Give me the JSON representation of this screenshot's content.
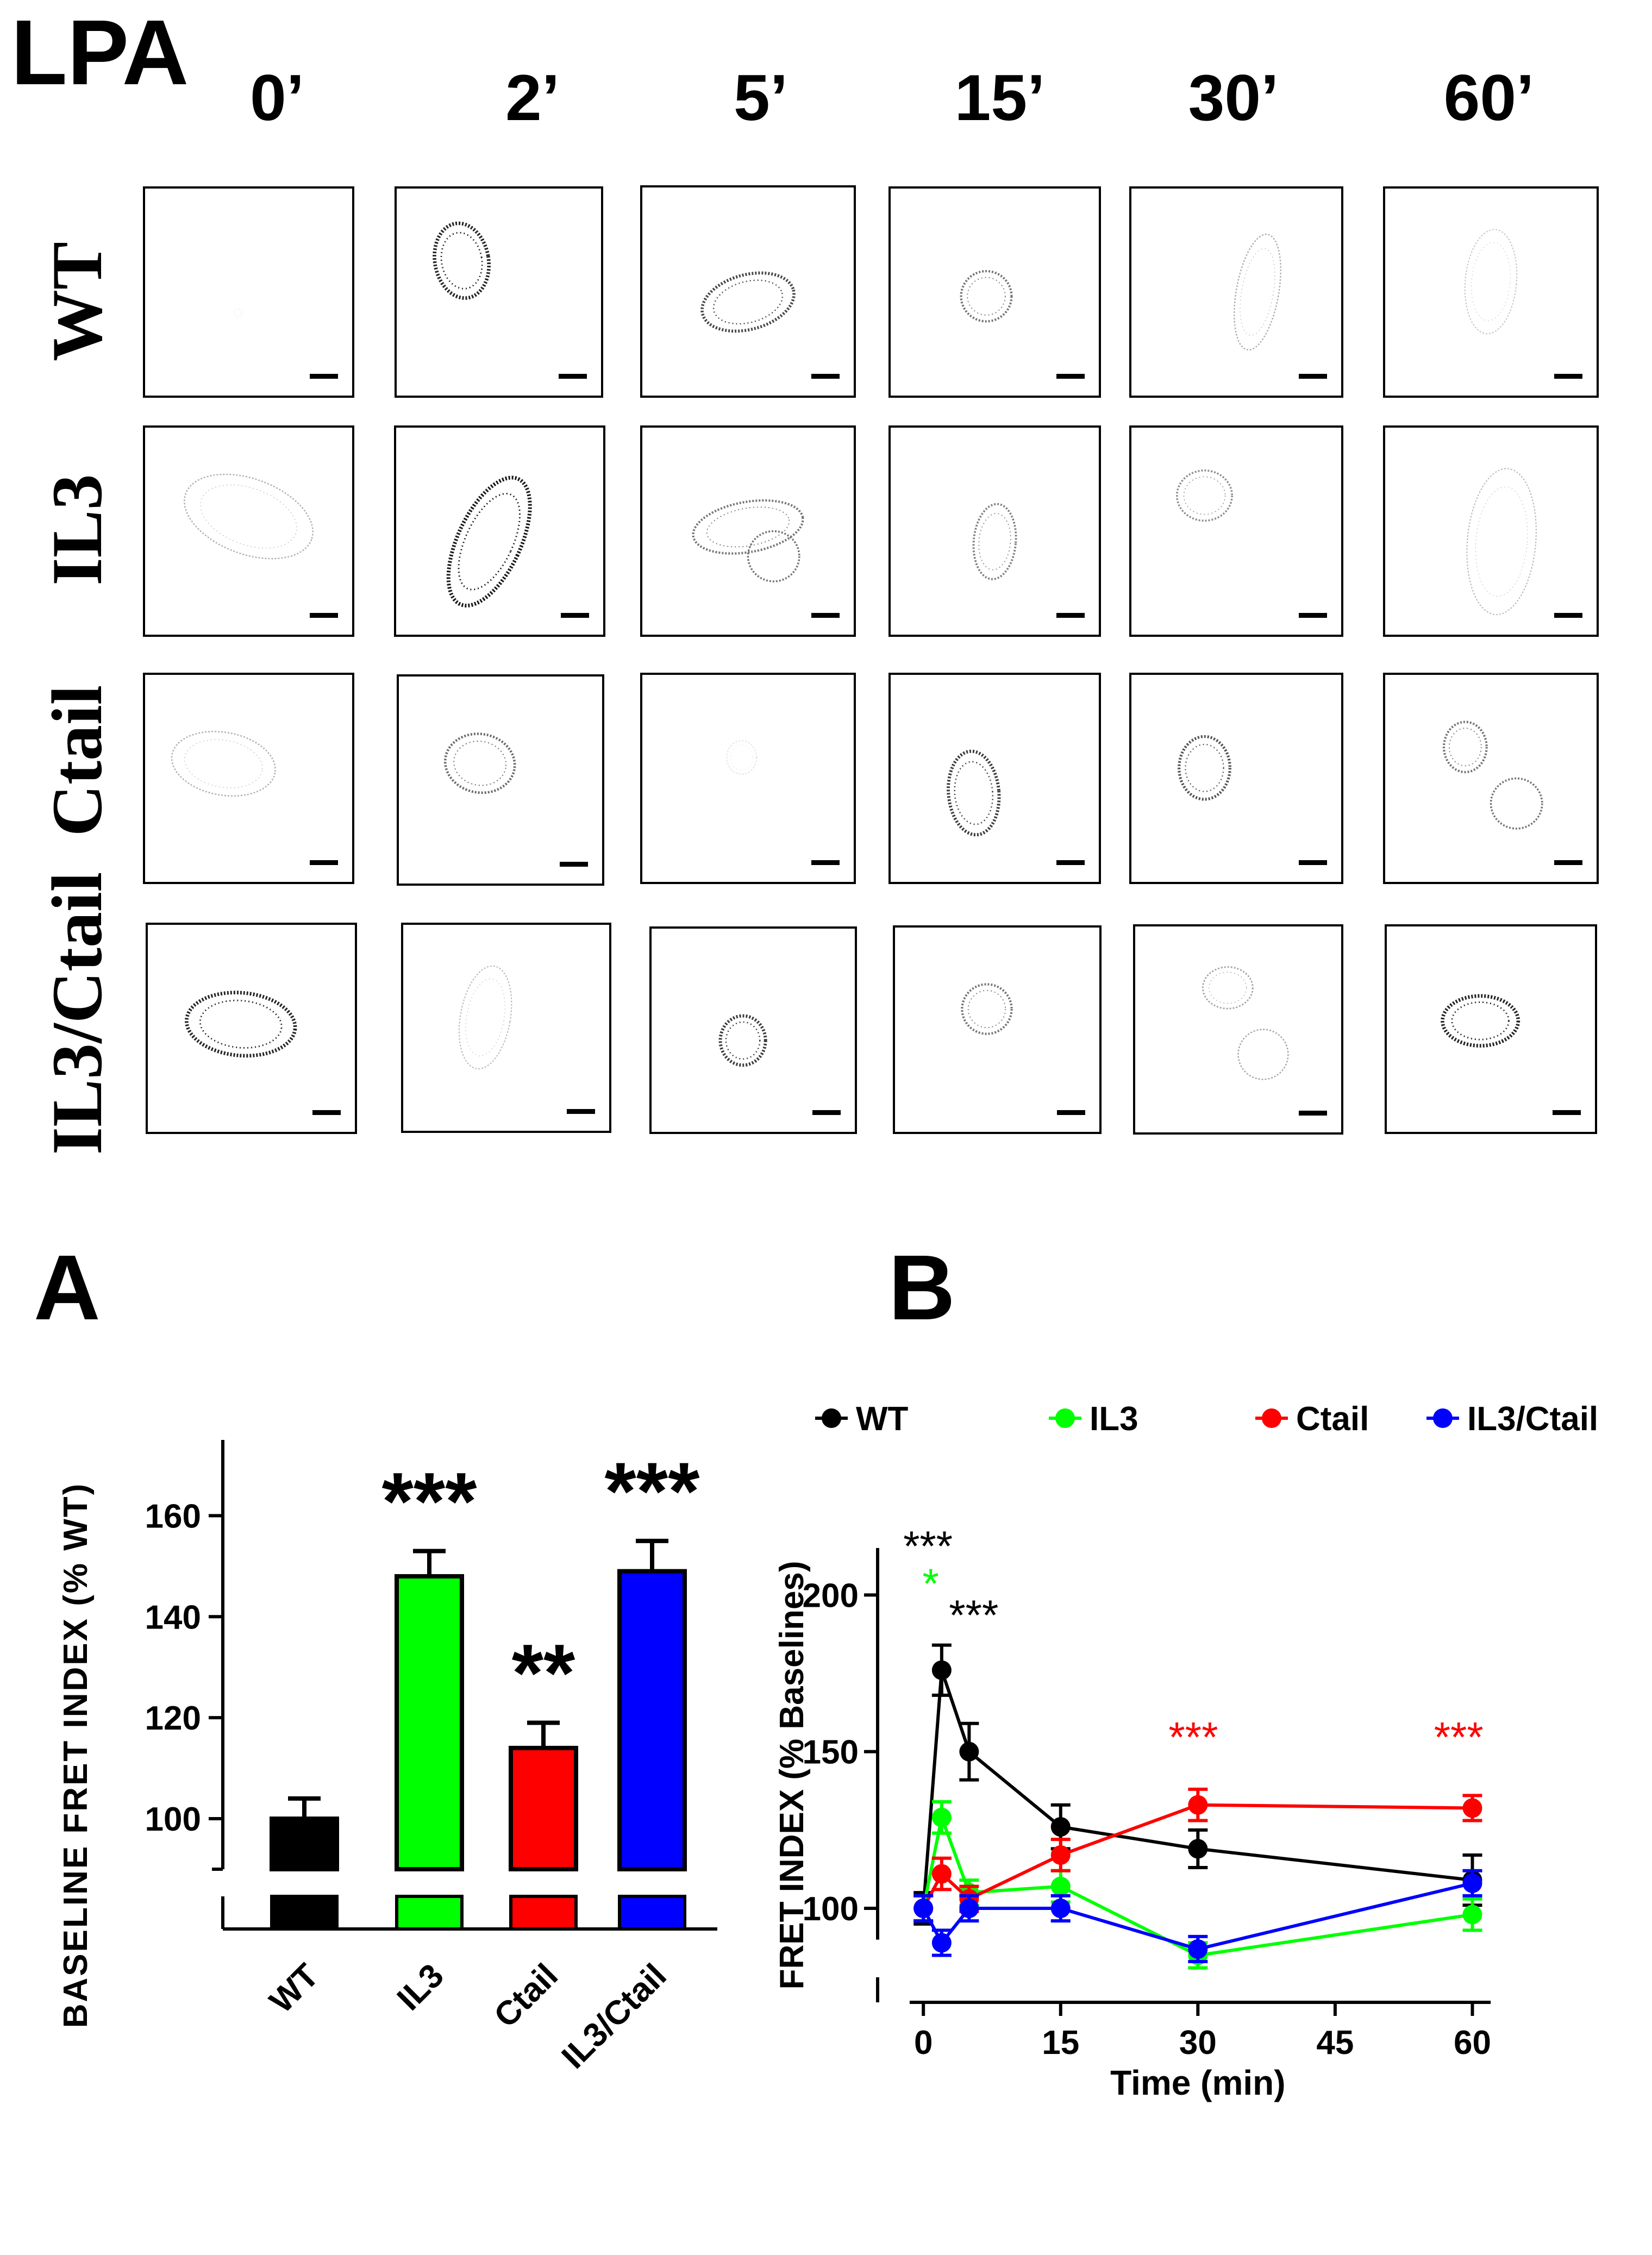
{
  "figure": {
    "treatment_label": "LPA",
    "time_labels": [
      "0’",
      "2’",
      "5’",
      "15’",
      "30’",
      "60’"
    ],
    "row_labels": [
      "WT",
      "IL3",
      "Ctail",
      "IL3/Ctail"
    ],
    "panel_a_label": "A",
    "panel_b_label": "B"
  },
  "chart_data": [
    {
      "type": "bar",
      "panel": "A",
      "ylabel": "BASELINE FRET INDEX (% WT)",
      "categories": [
        "WT",
        "IL3",
        "Ctail",
        "IL3/Ctail"
      ],
      "values": [
        100,
        148,
        114,
        149
      ],
      "errors": [
        4,
        5,
        5,
        6
      ],
      "significance": [
        "",
        "***",
        "**",
        "***"
      ],
      "colors": [
        "#000000",
        "#00ff00",
        "#ff0000",
        "#0000ff"
      ],
      "ylim": [
        90,
        175
      ],
      "axis_break": true,
      "yticks": [
        100,
        120,
        140,
        160
      ],
      "ytick_labels": [
        "100",
        "120",
        "140",
        "160"
      ]
    },
    {
      "type": "line",
      "panel": "B",
      "xlabel": "Time (min)",
      "ylabel": "FRET INDEX (% Baselines)",
      "xlim": [
        -5,
        63
      ],
      "ylim": [
        70,
        220
      ],
      "xticks": [
        0,
        15,
        30,
        45,
        60
      ],
      "xtick_labels": [
        "0",
        "15",
        "30",
        "45",
        "60"
      ],
      "yticks": [
        100,
        150,
        200
      ],
      "ytick_labels": [
        "100",
        "150",
        "200"
      ],
      "legend_position": "top",
      "series": [
        {
          "name": "WT",
          "color": "#000000",
          "x": [
            0,
            2,
            5,
            15,
            30,
            60
          ],
          "y": [
            100,
            176,
            150,
            126,
            119,
            109
          ],
          "err": [
            5,
            8,
            9,
            7,
            6,
            8
          ]
        },
        {
          "name": "IL3",
          "color": "#00ff00",
          "x": [
            0,
            2,
            5,
            15,
            30,
            60
          ],
          "y": [
            100,
            129,
            105,
            107,
            85,
            98
          ],
          "err": [
            4,
            5,
            4,
            5,
            4,
            5
          ]
        },
        {
          "name": "Ctail",
          "color": "#ff0000",
          "x": [
            0,
            2,
            5,
            15,
            30,
            60
          ],
          "y": [
            100,
            111,
            103,
            117,
            133,
            132
          ],
          "err": [
            4,
            5,
            4,
            5,
            5,
            4
          ]
        },
        {
          "name": "IL3/Ctail",
          "color": "#0000ff",
          "x": [
            0,
            2,
            5,
            15,
            30,
            60
          ],
          "y": [
            100,
            89,
            100,
            100,
            87,
            108
          ],
          "err": [
            4,
            4,
            4,
            4,
            4,
            4
          ]
        }
      ],
      "annotations": [
        {
          "text": "***",
          "color": "#000000",
          "x": 0.5,
          "y": 211
        },
        {
          "text": "*",
          "color": "#00ff00",
          "x": 0.8,
          "y": 199
        },
        {
          "text": "***",
          "color": "#000000",
          "x": 5.5,
          "y": 189
        },
        {
          "text": "***",
          "color": "#ff0000",
          "x": 29.5,
          "y": 150
        },
        {
          "text": "***",
          "color": "#ff0000",
          "x": 58.5,
          "y": 150
        }
      ]
    }
  ]
}
